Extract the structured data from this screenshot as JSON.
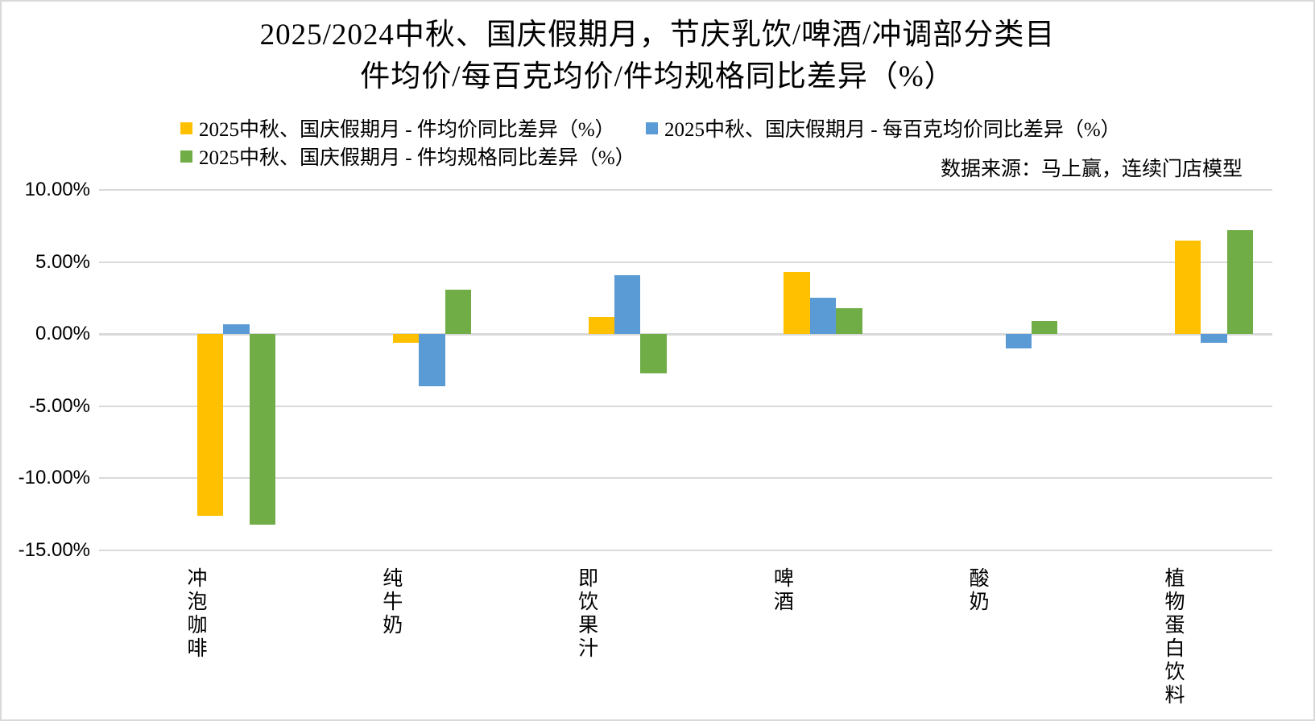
{
  "title": {
    "line1": "2025/2024中秋、国庆假期月，节庆乳饮/啤酒/冲调部分类目",
    "line2": "件均价/每百克均价/件均规格同比差异（%）"
  },
  "source_note": "数据来源：马上赢，连续门店模型",
  "legend": {
    "items": [
      {
        "label": "2025中秋、国庆假期月 - 件均价同比差异（%）",
        "color": "#FFC000"
      },
      {
        "label": "2025中秋、国庆假期月 - 每百克均价同比差异（%）",
        "color": "#5B9BD5"
      },
      {
        "label": "2025中秋、国庆假期月 - 件均规格同比差异（%）",
        "color": "#70AD47"
      }
    ]
  },
  "chart_data": {
    "type": "bar",
    "title": "2025/2024中秋、国庆假期月，节庆乳饮/啤酒/冲调部分类目 件均价/每百克均价/件均规格同比差异（%）",
    "categories": [
      "冲泡咖啡",
      "纯牛奶",
      "即饮果汁",
      "啤酒",
      "酸奶",
      "植物蛋白饮料"
    ],
    "series": [
      {
        "name": "2025中秋、国庆假期月 - 件均价同比差异（%）",
        "color": "#FFC000",
        "values": [
          -12.6,
          -0.6,
          1.2,
          4.3,
          0.0,
          6.5
        ]
      },
      {
        "name": "2025中秋、国庆假期月 - 每百克均价同比差异（%）",
        "color": "#5B9BD5",
        "values": [
          0.7,
          -3.6,
          4.1,
          2.5,
          -1.0,
          -0.6
        ]
      },
      {
        "name": "2025中秋、国庆假期月 - 件均规格同比差异（%）",
        "color": "#70AD47",
        "values": [
          -13.2,
          3.1,
          -2.7,
          1.8,
          0.9,
          7.2
        ]
      }
    ],
    "ylabel": "",
    "xlabel": "",
    "ylim": [
      -15,
      10
    ],
    "y_tick_step": 5,
    "y_tick_labels": [
      "10.00%",
      "5.00%",
      "0.00%",
      "-5.00%",
      "-10.00%",
      "-15.00%"
    ],
    "grid": true,
    "legend_position": "top",
    "x_label_orientation": "vertical-stacked"
  }
}
